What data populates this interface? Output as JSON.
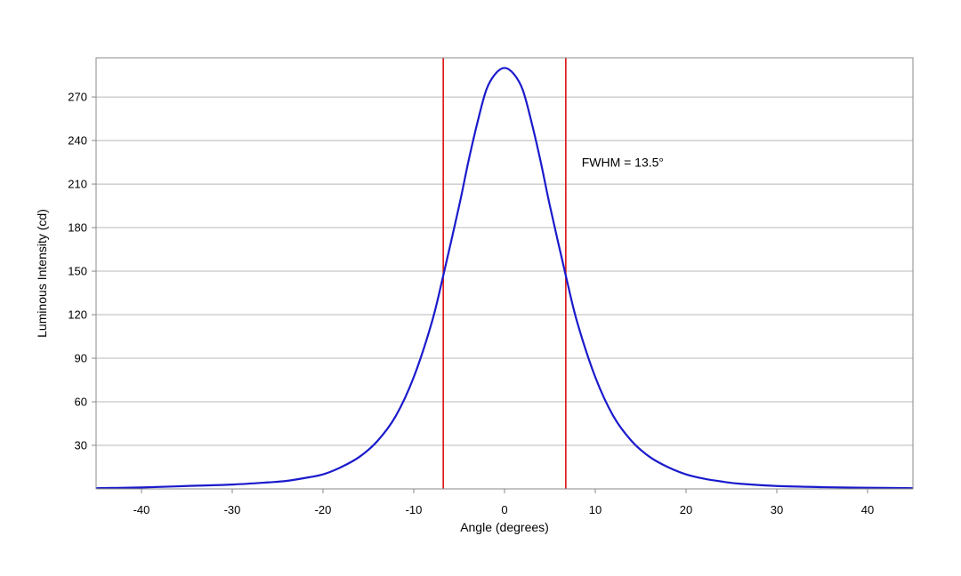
{
  "chart_data": {
    "type": "line",
    "title": "",
    "xlabel": "Angle (degrees)",
    "ylabel": "Luminous Intensity (cd)",
    "xlim": [
      -45,
      45
    ],
    "ylim": [
      0,
      297
    ],
    "x_ticks": [
      -40,
      -30,
      -20,
      -10,
      0,
      10,
      20,
      30,
      40
    ],
    "y_ticks": [
      30,
      60,
      90,
      120,
      150,
      180,
      210,
      240,
      270
    ],
    "grid": {
      "horizontal": true,
      "vertical": false
    },
    "legend": "none",
    "series": [
      {
        "color": "#1a1acc",
        "x": [
          -45,
          -40,
          -35,
          -30,
          -26,
          -24,
          -22,
          -20,
          -18,
          -16,
          -14,
          -12,
          -10,
          -8,
          -6.75,
          -5,
          -4,
          -3,
          -2,
          -1,
          0,
          1,
          2,
          3,
          4,
          5,
          6.75,
          8,
          10,
          12,
          14,
          16,
          18,
          20,
          22,
          24,
          26,
          30,
          35,
          40,
          45
        ],
        "y": [
          0.5,
          1,
          2,
          3,
          4.5,
          5.5,
          7.5,
          10,
          15,
          22,
          33,
          50,
          77,
          115,
          147,
          195,
          225,
          252,
          275,
          286,
          290,
          286,
          275,
          252,
          225,
          195,
          147,
          115,
          77,
          50,
          33,
          22,
          15,
          10,
          7,
          5,
          3.5,
          2,
          1.2,
          0.8,
          0.5
        ]
      }
    ],
    "reference_lines": [
      {
        "x": -6.75,
        "color": "#dd1111"
      },
      {
        "x": 6.75,
        "color": "#dd1111"
      }
    ],
    "annotations": [
      {
        "text": "FWHM = 13.5°",
        "x": 8.5,
        "y": 225
      }
    ]
  }
}
